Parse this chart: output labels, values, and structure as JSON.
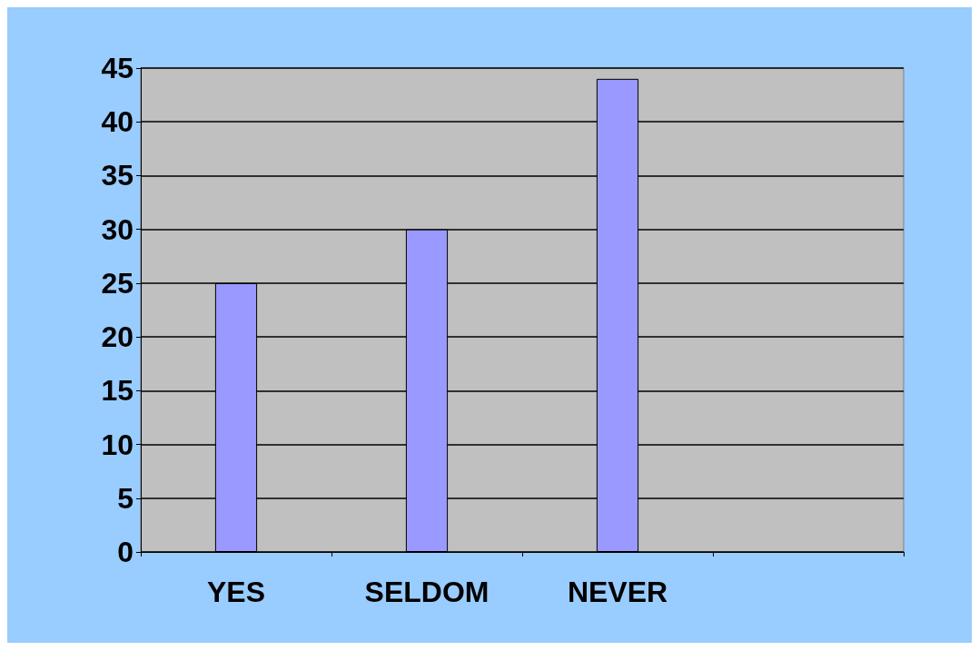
{
  "chart_data": {
    "type": "bar",
    "categories": [
      "YES",
      "SELDOM",
      "NEVER",
      null
    ],
    "values": [
      25,
      30,
      44,
      null
    ],
    "color": "#9999ff",
    "ylim": [
      0,
      45
    ],
    "yticks": [
      0,
      5,
      10,
      15,
      20,
      25,
      30,
      35,
      40,
      45
    ],
    "grid": "y"
  }
}
